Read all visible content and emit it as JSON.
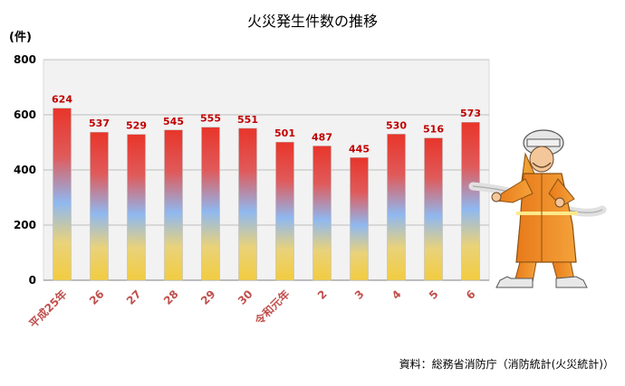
{
  "title": "火災発生件数の推移",
  "unit_label": "(件)",
  "source": "資料：総務省消防庁（消防統計(火災統計)）",
  "illustration": "firefighter-with-hose",
  "colors": {
    "bar_top": "#e8352a",
    "bar_mid": "#8fb8f0",
    "bar_bottom": "#f2cc40",
    "data_label": "#c00000",
    "category_label": "#c0504d",
    "plot_background": "#f2f2f2",
    "grid": "#bfbfbf"
  },
  "chart_data": {
    "type": "bar",
    "title": "火災発生件数の推移",
    "ylabel": "(件)",
    "xlabel": "",
    "categories": [
      "平成25年",
      "26",
      "27",
      "28",
      "29",
      "30",
      "令和元年",
      "2",
      "3",
      "4",
      "5",
      "6"
    ],
    "values": [
      624,
      537,
      529,
      545,
      555,
      551,
      501,
      487,
      445,
      530,
      516,
      573
    ],
    "ylim": [
      0,
      800
    ],
    "yticks": [
      0,
      200,
      400,
      600,
      800
    ],
    "grid": true,
    "legend": "none",
    "data_labels": true
  }
}
